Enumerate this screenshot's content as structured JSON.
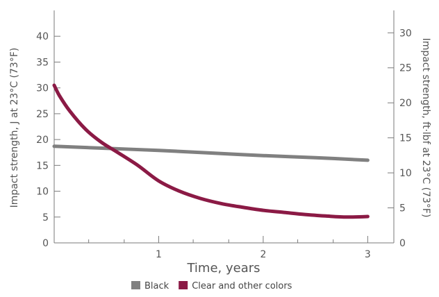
{
  "chart_data": {
    "type": "line",
    "xlabel": "Time, years",
    "ylabel": "Impact strength, J at 23°C (73°F)",
    "y2label": "Impact strength, ft·lbf at 23°C (73°F)",
    "xlim": [
      0,
      3.25
    ],
    "ylim": [
      0,
      45
    ],
    "y2lim": [
      0,
      33.2
    ],
    "x_ticks": [
      1,
      2,
      3
    ],
    "x_minor_ticks": [
      0.33,
      0.67,
      1.33,
      1.67,
      2.33,
      2.67
    ],
    "y_ticks": [
      0,
      5,
      10,
      15,
      20,
      25,
      30,
      35,
      40
    ],
    "y2_ticks": [
      0,
      5,
      10,
      15,
      20,
      25,
      30
    ],
    "grid": false,
    "legend_position": "bottom-center",
    "series": [
      {
        "name": "Black",
        "color": "#808080",
        "x": [
          0,
          0.5,
          1,
          1.5,
          2,
          2.5,
          3
        ],
        "values": [
          18.7,
          18.3,
          17.9,
          17.4,
          16.9,
          16.5,
          16.0
        ]
      },
      {
        "name": "Clear and other colors",
        "color": "#8b1a45",
        "x": [
          0,
          0.05,
          0.15,
          0.3,
          0.45,
          0.6,
          0.8,
          1.0,
          1.2,
          1.4,
          1.6,
          1.8,
          2.0,
          2.2,
          2.4,
          2.6,
          2.8,
          3.0
        ],
        "values": [
          30.5,
          28.5,
          25.5,
          22.0,
          19.5,
          17.6,
          15.0,
          12.0,
          10.0,
          8.6,
          7.6,
          6.9,
          6.3,
          5.9,
          5.5,
          5.2,
          5.0,
          5.1
        ]
      }
    ]
  }
}
